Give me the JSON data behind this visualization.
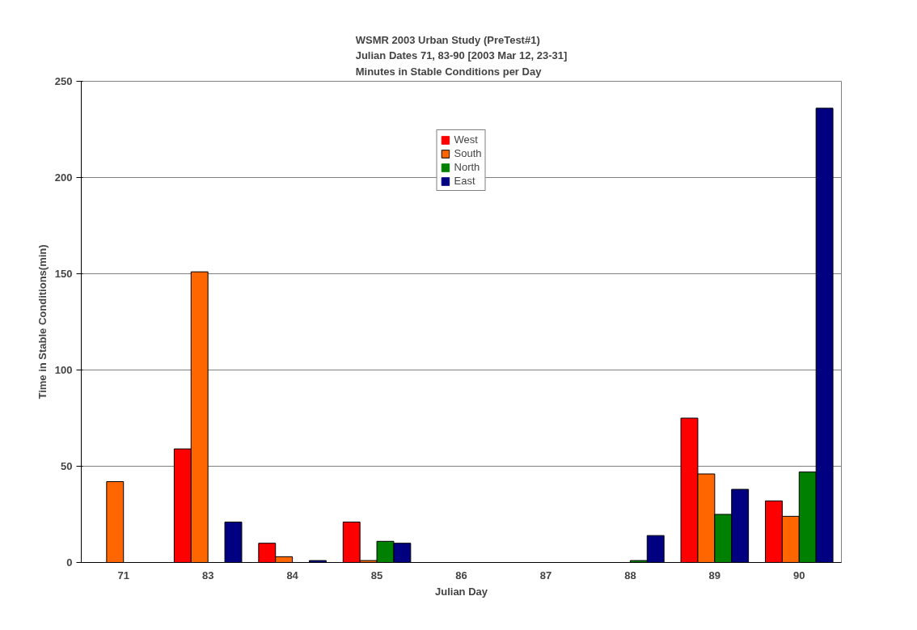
{
  "chart_data": {
    "type": "bar",
    "title": "WSMR 2003 Urban Study (PreTest#1)\nJulian Dates 71, 83-90 [2003 Mar 12, 23-31]\nMinutes in Stable Conditions per Day",
    "xlabel": "Julian Day",
    "ylabel": "Time in Stable Conditions(min)",
    "categories": [
      "71",
      "83",
      "84",
      "85",
      "86",
      "87",
      "88",
      "89",
      "90"
    ],
    "series": [
      {
        "name": "West",
        "color": "#ff0000",
        "values": [
          0,
          59,
          10,
          21,
          0,
          0,
          0,
          75,
          32
        ]
      },
      {
        "name": "South",
        "color": "#ff6600",
        "values": [
          42,
          151,
          3,
          1,
          0,
          0,
          0,
          46,
          24
        ]
      },
      {
        "name": "North",
        "color": "#008000",
        "values": [
          0,
          0,
          0,
          11,
          0,
          0,
          1,
          25,
          47
        ]
      },
      {
        "name": "East",
        "color": "#000080",
        "values": [
          0,
          21,
          1,
          10,
          0,
          0,
          14,
          38,
          236
        ]
      }
    ],
    "ylim": [
      0,
      250
    ],
    "yticks": [
      0,
      50,
      100,
      150,
      200,
      250
    ],
    "grid": "y",
    "legend": "top"
  }
}
